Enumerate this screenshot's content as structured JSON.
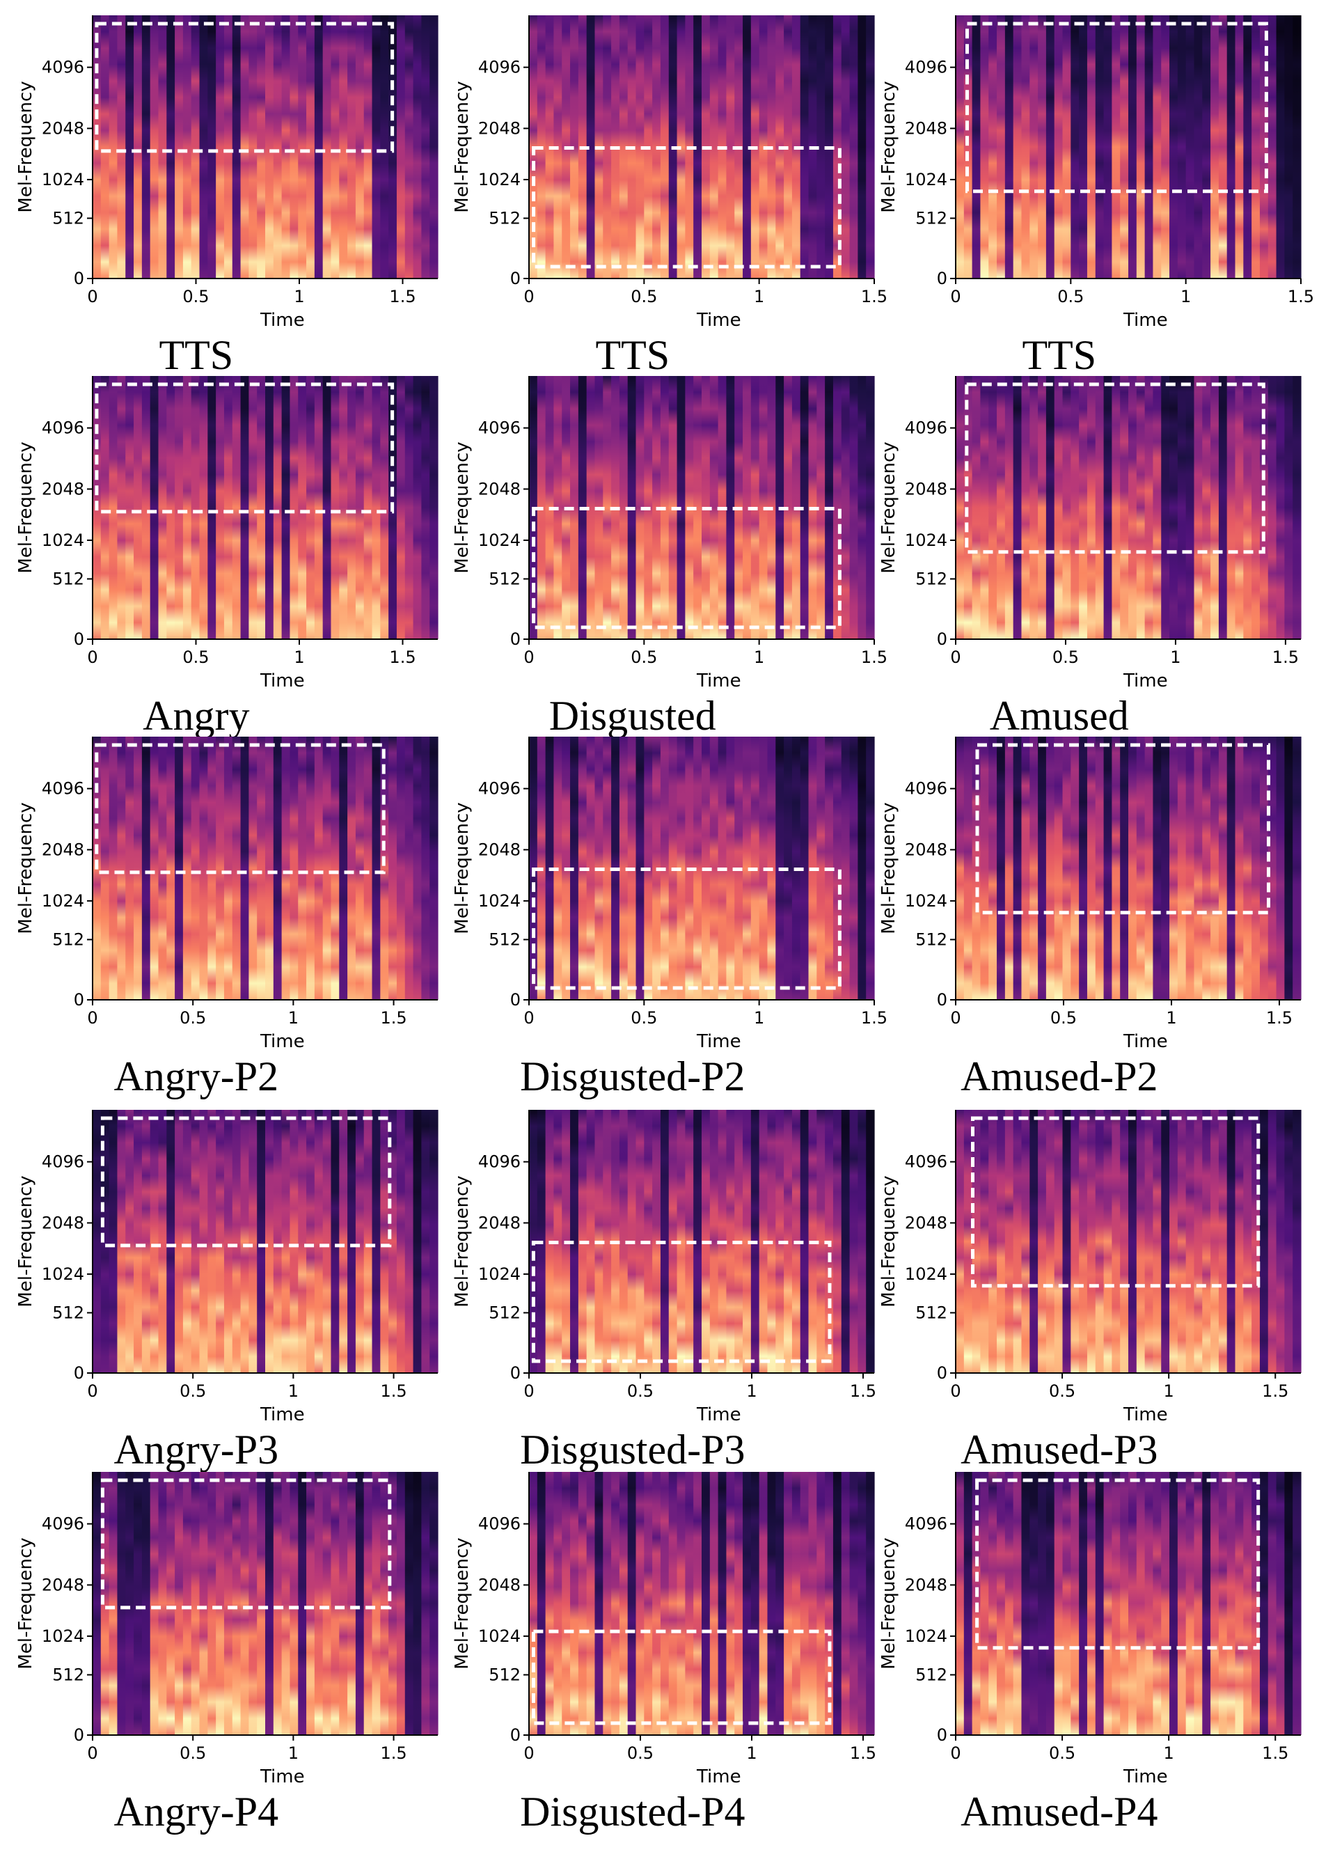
{
  "figure": {
    "description_colormap": "magma",
    "colormap_stops": [
      "#000004",
      "#1c1044",
      "#4f127b",
      "#812581",
      "#b5367a",
      "#e55964",
      "#fb8761",
      "#fec287",
      "#fcfdbf"
    ]
  },
  "chart_data": [
    {
      "type": "heatmap",
      "caption": "TTS",
      "xlabel": "Time",
      "ylabel": "Mel-Frequency",
      "xlim": [
        0,
        1.67
      ],
      "xticks": [
        "0",
        "0.5",
        "1",
        "1.5"
      ],
      "yticks": [
        "0",
        "512",
        "1024",
        "2048",
        "4096"
      ],
      "highlight_region": {
        "time": [
          0.02,
          1.45
        ],
        "mel_freq": [
          1536,
          6500
        ]
      },
      "seed": 11
    },
    {
      "type": "heatmap",
      "caption": "TTS",
      "xlabel": "Time",
      "ylabel": "Mel-Frequency",
      "xlim": [
        0,
        1.5
      ],
      "xticks": [
        "0",
        "0.5",
        "1",
        "1.5"
      ],
      "yticks": [
        "0",
        "512",
        "1024",
        "2048",
        "4096"
      ],
      "highlight_region": {
        "time": [
          0.02,
          1.35
        ],
        "mel_freq": [
          80,
          1600
        ]
      },
      "seed": 23
    },
    {
      "type": "heatmap",
      "caption": "TTS",
      "xlabel": "Time",
      "ylabel": "Mel-Frequency",
      "xlim": [
        0,
        1.5
      ],
      "xticks": [
        "0",
        "0.5",
        "1",
        "1.5"
      ],
      "yticks": [
        "0",
        "512",
        "1024",
        "2048",
        "4096"
      ],
      "highlight_region": {
        "time": [
          0.05,
          1.35
        ],
        "mel_freq": [
          850,
          6500
        ]
      },
      "seed": 37
    },
    {
      "type": "heatmap",
      "caption": "Angry",
      "xlabel": "Time",
      "ylabel": "Mel-Frequency",
      "xlim": [
        0,
        1.67
      ],
      "xticks": [
        "0",
        "0.5",
        "1",
        "1.5"
      ],
      "yticks": [
        "0",
        "512",
        "1024",
        "2048",
        "4096"
      ],
      "highlight_region": {
        "time": [
          0.02,
          1.45
        ],
        "mel_freq": [
          1536,
          6500
        ]
      },
      "seed": 41
    },
    {
      "type": "heatmap",
      "caption": "Disgusted",
      "xlabel": "Time",
      "ylabel": "Mel-Frequency",
      "xlim": [
        0,
        1.5
      ],
      "xticks": [
        "0",
        "0.5",
        "1",
        "1.5"
      ],
      "yticks": [
        "0",
        "512",
        "1024",
        "2048",
        "4096"
      ],
      "highlight_region": {
        "time": [
          0.02,
          1.35
        ],
        "mel_freq": [
          80,
          1600
        ]
      },
      "seed": 53
    },
    {
      "type": "heatmap",
      "caption": "Amused",
      "xlabel": "Time",
      "ylabel": "Mel-Frequency",
      "xlim": [
        0,
        1.57
      ],
      "xticks": [
        "0",
        "0.5",
        "1",
        "1.5"
      ],
      "yticks": [
        "0",
        "512",
        "1024",
        "2048",
        "4096"
      ],
      "highlight_region": {
        "time": [
          0.05,
          1.4
        ],
        "mel_freq": [
          850,
          6500
        ]
      },
      "seed": 61
    },
    {
      "type": "heatmap",
      "caption": "Angry-P2",
      "xlabel": "Time",
      "ylabel": "Mel-Frequency",
      "xlim": [
        0,
        1.72
      ],
      "xticks": [
        "0",
        "0.5",
        "1",
        "1.5"
      ],
      "yticks": [
        "0",
        "512",
        "1024",
        "2048",
        "4096"
      ],
      "highlight_region": {
        "time": [
          0.02,
          1.45
        ],
        "mel_freq": [
          1536,
          6500
        ]
      },
      "seed": 73
    },
    {
      "type": "heatmap",
      "caption": "Disgusted-P2",
      "xlabel": "Time",
      "ylabel": "Mel-Frequency",
      "xlim": [
        0,
        1.5
      ],
      "xticks": [
        "0",
        "0.5",
        "1",
        "1.5"
      ],
      "yticks": [
        "0",
        "512",
        "1024",
        "2048",
        "4096"
      ],
      "highlight_region": {
        "time": [
          0.02,
          1.35
        ],
        "mel_freq": [
          80,
          1600
        ]
      },
      "seed": 83
    },
    {
      "type": "heatmap",
      "caption": "Amused-P2",
      "xlabel": "Time",
      "ylabel": "Mel-Frequency",
      "xlim": [
        0,
        1.6
      ],
      "xticks": [
        "0",
        "0.5",
        "1",
        "1.5"
      ],
      "yticks": [
        "0",
        "512",
        "1024",
        "2048",
        "4096"
      ],
      "highlight_region": {
        "time": [
          0.1,
          1.45
        ],
        "mel_freq": [
          850,
          6500
        ]
      },
      "seed": 97
    },
    {
      "type": "heatmap",
      "caption": "Angry-P3",
      "xlabel": "Time",
      "ylabel": "Mel-Frequency",
      "xlim": [
        0,
        1.72
      ],
      "xticks": [
        "0",
        "0.5",
        "1",
        "1.5"
      ],
      "yticks": [
        "0",
        "512",
        "1024",
        "2048",
        "4096"
      ],
      "highlight_region": {
        "time": [
          0.05,
          1.48
        ],
        "mel_freq": [
          1536,
          6500
        ]
      },
      "seed": 101
    },
    {
      "type": "heatmap",
      "caption": "Disgusted-P3",
      "xlabel": "Time",
      "ylabel": "Mel-Frequency",
      "xlim": [
        0,
        1.55
      ],
      "xticks": [
        "0",
        "0.5",
        "1",
        "1.5"
      ],
      "yticks": [
        "0",
        "512",
        "1024",
        "2048",
        "4096"
      ],
      "highlight_region": {
        "time": [
          0.02,
          1.35
        ],
        "mel_freq": [
          80,
          1600
        ]
      },
      "seed": 113
    },
    {
      "type": "heatmap",
      "caption": "Amused-P3",
      "xlabel": "Time",
      "ylabel": "Mel-Frequency",
      "xlim": [
        0,
        1.62
      ],
      "xticks": [
        "0",
        "0.5",
        "1",
        "1.5"
      ],
      "yticks": [
        "0",
        "512",
        "1024",
        "2048",
        "4096"
      ],
      "highlight_region": {
        "time": [
          0.08,
          1.42
        ],
        "mel_freq": [
          850,
          6500
        ]
      },
      "seed": 127
    },
    {
      "type": "heatmap",
      "caption": "Angry-P4",
      "xlabel": "Time",
      "ylabel": "Mel-Frequency",
      "xlim": [
        0,
        1.72
      ],
      "xticks": [
        "0",
        "0.5",
        "1",
        "1.5"
      ],
      "yticks": [
        "0",
        "512",
        "1024",
        "2048",
        "4096"
      ],
      "highlight_region": {
        "time": [
          0.05,
          1.48
        ],
        "mel_freq": [
          1536,
          6500
        ]
      },
      "seed": 131
    },
    {
      "type": "heatmap",
      "caption": "Disgusted-P4",
      "xlabel": "Time",
      "ylabel": "Mel-Frequency",
      "xlim": [
        0,
        1.55
      ],
      "xticks": [
        "0",
        "0.5",
        "1",
        "1.5"
      ],
      "yticks": [
        "0",
        "512",
        "1024",
        "2048",
        "4096"
      ],
      "highlight_region": {
        "time": [
          0.02,
          1.35
        ],
        "mel_freq": [
          80,
          1100
        ]
      },
      "seed": 139
    },
    {
      "type": "heatmap",
      "caption": "Amused-P4",
      "xlabel": "Time",
      "ylabel": "Mel-Frequency",
      "xlim": [
        0,
        1.62
      ],
      "xticks": [
        "0",
        "0.5",
        "1",
        "1.5"
      ],
      "yticks": [
        "0",
        "512",
        "1024",
        "2048",
        "4096"
      ],
      "highlight_region": {
        "time": [
          0.1,
          1.42
        ],
        "mel_freq": [
          850,
          6500
        ]
      },
      "seed": 149
    }
  ]
}
